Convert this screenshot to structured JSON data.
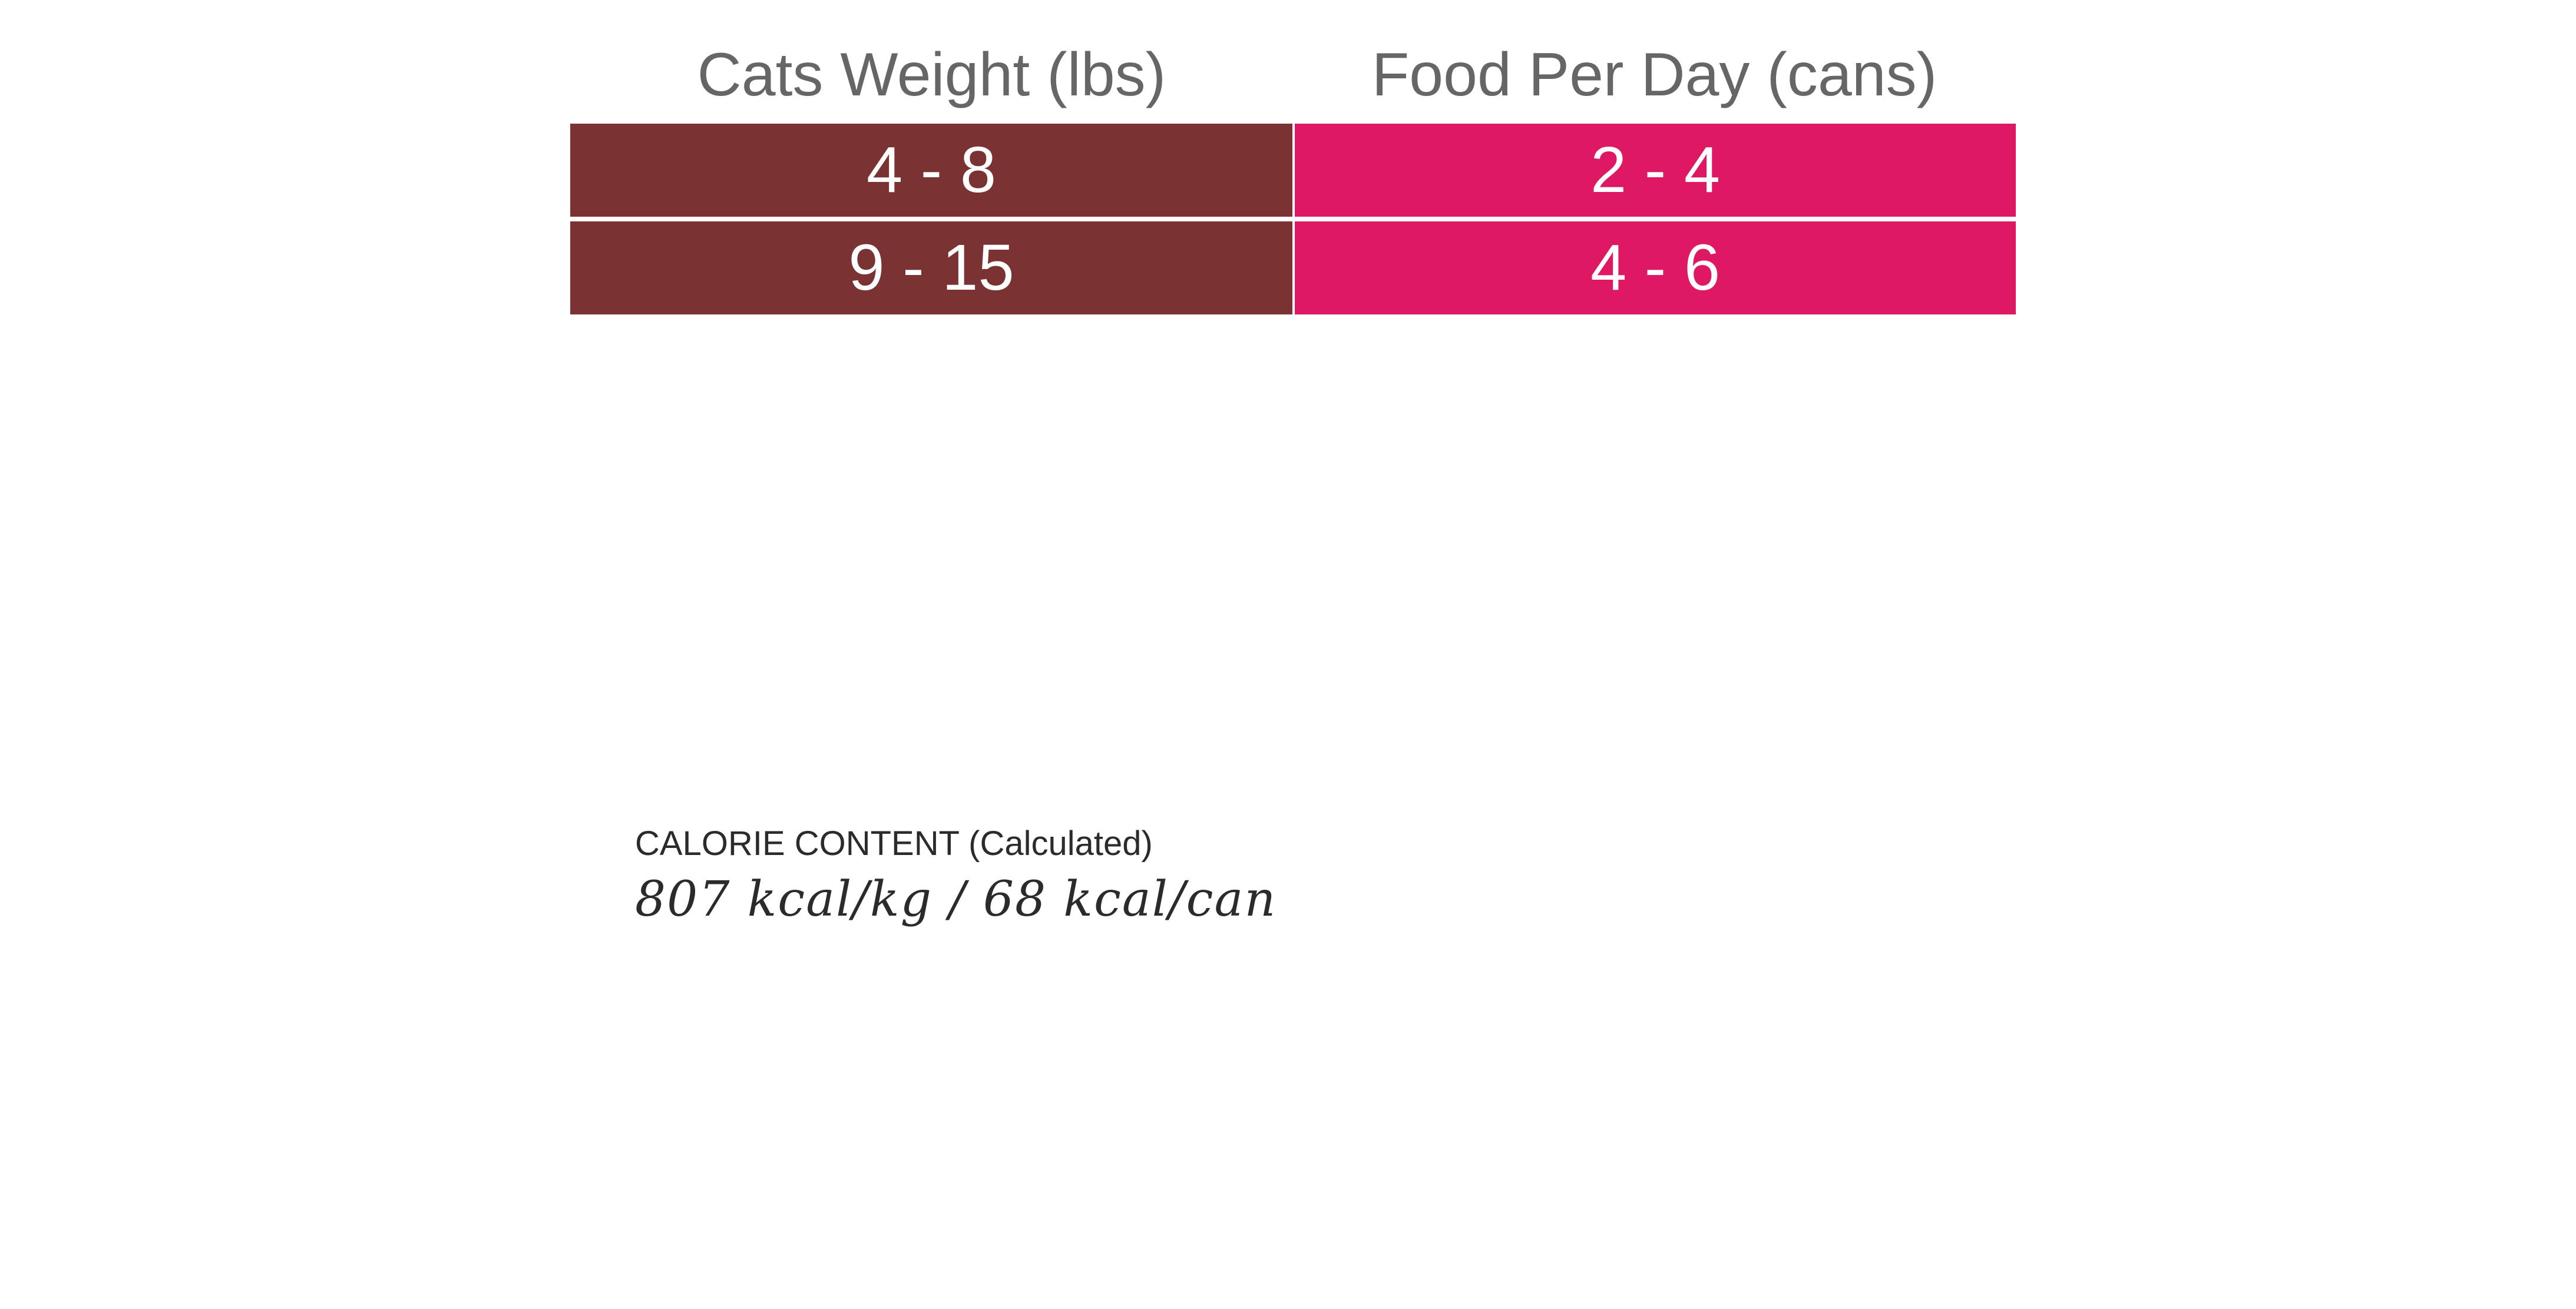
{
  "feeding_table": {
    "headers": {
      "weight": "Cats Weight (lbs)",
      "food": "Food Per Day (cans)"
    },
    "rows": [
      {
        "weight": "4 - 8",
        "food": "2 - 4"
      },
      {
        "weight": "9 - 15",
        "food": "4  - 6"
      }
    ],
    "colors": {
      "weight_column": "#7a3232",
      "food_column": "#df1864",
      "header_text": "#666666"
    }
  },
  "calorie": {
    "heading": "CALORIE CONTENT (Calculated)",
    "value": "807 kcal/kg / 68 kcal/can"
  }
}
